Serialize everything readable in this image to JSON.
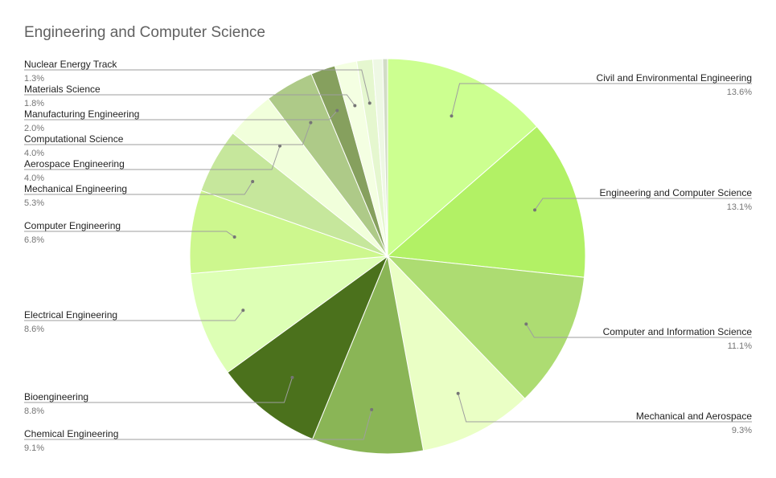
{
  "chart_data": {
    "type": "pie",
    "title": "Engineering and Computer Science",
    "slices": [
      {
        "label": "Civil and Environmental Engineering",
        "value": 13.6,
        "value_label": "13.6%",
        "color": "#ccff90"
      },
      {
        "label": "Engineering and Computer Science",
        "value": 13.1,
        "value_label": "13.1%",
        "color": "#b2f165"
      },
      {
        "label": "Computer and Information Science",
        "value": 11.1,
        "value_label": "11.1%",
        "color": "#addc72"
      },
      {
        "label": "Mechanical and Aerospace",
        "value": 9.3,
        "value_label": "9.3%",
        "color": "#eaffc5"
      },
      {
        "label": "Chemical Engineering",
        "value": 9.1,
        "value_label": "9.1%",
        "color": "#8ab556"
      },
      {
        "label": "Bioengineering",
        "value": 8.8,
        "value_label": "8.8%",
        "color": "#4b711c"
      },
      {
        "label": "Electrical Engineering",
        "value": 8.6,
        "value_label": "8.6%",
        "color": "#ddffb5"
      },
      {
        "label": "Computer Engineering",
        "value": 6.8,
        "value_label": "6.8%",
        "color": "#cdf78e"
      },
      {
        "label": "Mechanical Engineering",
        "value": 5.3,
        "value_label": "5.3%",
        "color": "#c6e79c"
      },
      {
        "label": "Aerospace Engineering",
        "value": 4.0,
        "value_label": "4.0%",
        "color": "#f1ffdb"
      },
      {
        "label": "Computational Science",
        "value": 4.0,
        "value_label": "4.0%",
        "color": "#aeca88"
      },
      {
        "label": "Manufacturing Engineering",
        "value": 2.0,
        "value_label": "2.0%",
        "color": "#86a05e"
      },
      {
        "label": "Materials Science",
        "value": 1.8,
        "value_label": "1.8%",
        "color": "#f4ffe2"
      },
      {
        "label": "Nuclear Energy Track",
        "value": 1.3,
        "value_label": "1.3%",
        "color": "#e5f7cf"
      },
      {
        "label": "",
        "value": 0.8,
        "value_label": "",
        "color": "#eef8e4"
      },
      {
        "label": "",
        "value": 0.4,
        "value_label": "",
        "color": "#d2dcc6"
      }
    ]
  }
}
